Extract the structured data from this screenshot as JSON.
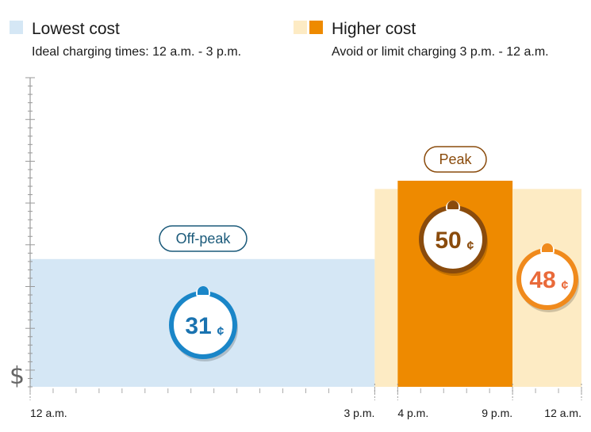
{
  "legend": {
    "low": {
      "title": "Lowest cost",
      "subtitle": "Ideal charging times: 12 a.m. - 3 p.m.",
      "color": "#d5e7f5"
    },
    "high": {
      "title": "Higher cost",
      "subtitle": "Avoid or limit charging 3 p.m. - 12 a.m.",
      "color_light": "#fdebc4",
      "color_dark": "#ee8a00"
    }
  },
  "chart_data": {
    "type": "bar",
    "ylabel": "$",
    "x_ticks": [
      "12 a.m.",
      "3 p.m.",
      "4 p.m.",
      "9 p.m.",
      "12 a.m."
    ],
    "periods": [
      {
        "label": "Off-peak",
        "start": "12 a.m.",
        "end": "3 p.m.",
        "start_h": 0,
        "end_h": 15,
        "value": 31,
        "price_label": "31",
        "unit": "¢",
        "color": "#d5e7f5",
        "accent": "#1a86c8",
        "text_color": "#1a73b0"
      },
      {
        "label": "",
        "start": "3 p.m.",
        "end": "4 p.m.",
        "start_h": 15,
        "end_h": 16,
        "value": 48,
        "color": "#fdebc4"
      },
      {
        "label": "Peak",
        "start": "4 p.m.",
        "end": "9 p.m.",
        "start_h": 16,
        "end_h": 21,
        "value": 50,
        "price_label": "50",
        "unit": "¢",
        "color": "#ee8a00",
        "accent": "#8a4b0c",
        "text_color": "#8a4b0c"
      },
      {
        "label": "",
        "start": "9 p.m.",
        "end": "12 a.m.",
        "start_h": 21,
        "end_h": 24,
        "value": 48,
        "price_label": "48",
        "unit": "¢",
        "color": "#fdebc4",
        "accent": "#f08a1c",
        "text_color": "#e96a3a"
      }
    ],
    "ylim": [
      0,
      75
    ]
  }
}
